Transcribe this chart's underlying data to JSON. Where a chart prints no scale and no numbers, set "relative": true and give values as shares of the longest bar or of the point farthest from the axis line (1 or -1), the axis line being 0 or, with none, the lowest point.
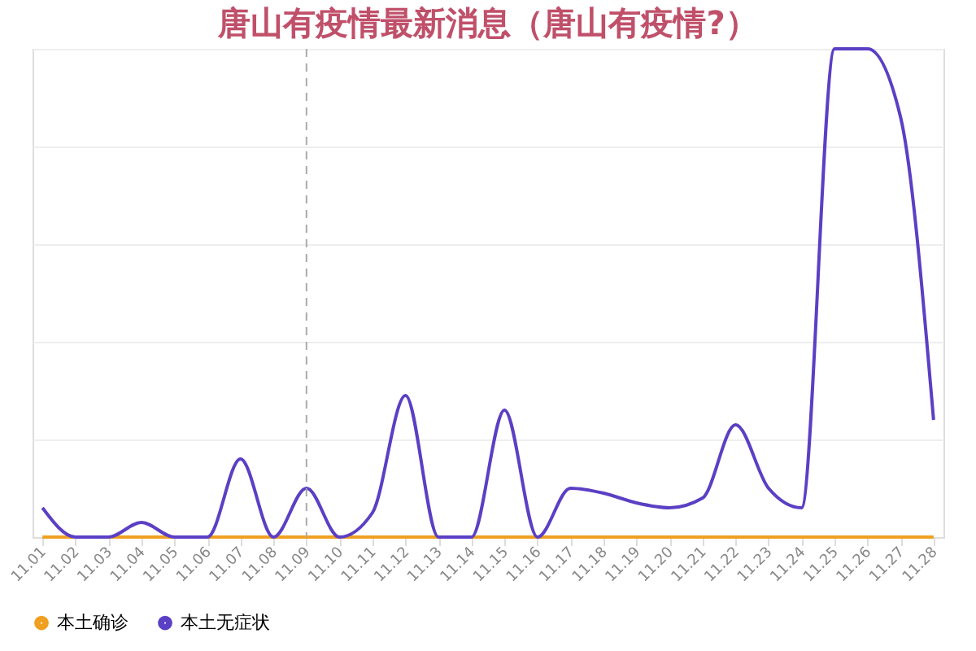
{
  "chart_data": {
    "type": "line",
    "title": "唐山有疫情最新消息（唐山有疫情?）",
    "relative": true,
    "categories": [
      "11.01",
      "11.02",
      "11.03",
      "11.04",
      "11.05",
      "11.06",
      "11.07",
      "11.08",
      "11.09",
      "11.10",
      "11.11",
      "11.12",
      "11.13",
      "11.14",
      "11.15",
      "11.16",
      "11.17",
      "11.18",
      "11.19",
      "11.20",
      "11.21",
      "11.22",
      "11.23",
      "11.24",
      "11.25",
      "11.26",
      "11.27",
      "11.28"
    ],
    "series": [
      {
        "name": "本土确诊",
        "color": "#f0a020",
        "values": [
          0,
          0,
          0,
          0,
          0,
          0,
          0,
          0,
          0,
          0,
          0,
          0,
          0,
          0,
          0,
          0,
          0,
          0,
          0,
          0,
          0,
          0,
          0,
          0,
          0,
          0,
          0,
          0
        ]
      },
      {
        "name": "本土无症状",
        "color": "#5b3fc4",
        "values": [
          0.06,
          0,
          0,
          0.03,
          0,
          0,
          0.16,
          0,
          0.1,
          0,
          0.05,
          0.29,
          0,
          0,
          0.26,
          0,
          0.1,
          0.09,
          0.07,
          0.06,
          0.08,
          0.23,
          0.1,
          0.06,
          1,
          1,
          0.86,
          0.24
        ]
      }
    ],
    "ref_lines": [
      {
        "axis": "x",
        "value": "11.09",
        "color": "#aaaaaa",
        "line_style": "dashed"
      }
    ],
    "grid": "y",
    "legend": "bottom",
    "marker": "none",
    "line_style": "solid"
  }
}
